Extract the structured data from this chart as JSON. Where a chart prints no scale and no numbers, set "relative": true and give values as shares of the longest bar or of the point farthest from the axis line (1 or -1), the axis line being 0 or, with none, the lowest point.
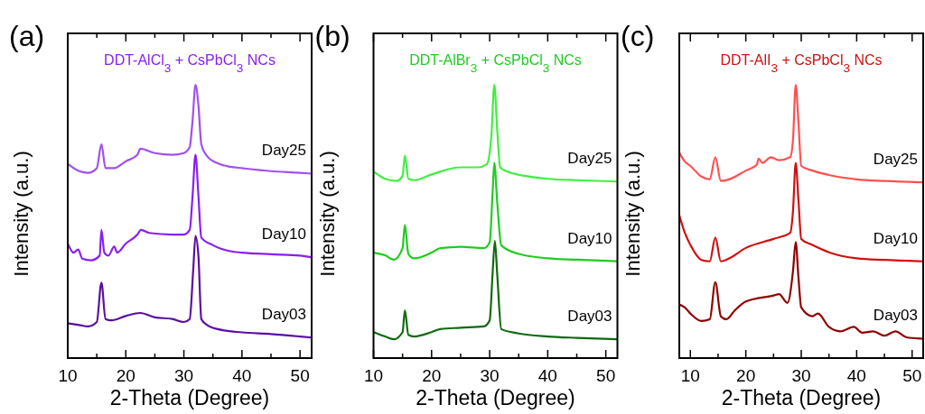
{
  "chart_data": [
    {
      "type": "line",
      "title": "DDT-AlCl$_{3}$ + CsPbCl$_{3}$ NCs",
      "xlabel": "2-Theta (Degree)",
      "ylabel": "Intensity (a.u.)",
      "annotations": [
        "(a)"
      ],
      "relative": true,
      "tick_labels": "x",
      "xlim": [
        10,
        52
      ],
      "xticks": [
        10,
        {
          "value": 15,
          "label": null
        },
        20,
        {
          "value": 25,
          "label": null
        },
        30,
        {
          "value": 35,
          "label": null
        },
        40,
        {
          "value": 45,
          "label": null
        },
        50
      ],
      "series": [
        {
          "name": "Day25",
          "color": "#a050f0",
          "x": [
            10,
            12,
            13.5,
            15,
            15.8,
            16.5,
            18,
            20,
            22,
            22.5,
            25,
            28,
            30,
            31,
            31.5,
            32,
            32.5,
            33,
            34,
            36,
            38,
            40,
            45,
            50,
            52
          ],
          "values": [
            0.711,
            0.684,
            0.678,
            0.695,
            0.783,
            0.695,
            0.695,
            0.72,
            0.744,
            0.766,
            0.75,
            0.744,
            0.75,
            0.772,
            0.871,
            1.0,
            0.926,
            0.783,
            0.739,
            0.711,
            0.7,
            0.695,
            0.684,
            0.678,
            0.675
          ]
        },
        {
          "name": "Day10",
          "color": "#8a1ff0",
          "x": [
            10,
            11,
            11.8,
            12.5,
            14,
            15.5,
            15.8,
            16.3,
            17,
            18,
            18.5,
            20,
            22,
            22.6,
            24,
            28,
            30,
            31,
            31.5,
            32,
            32.5,
            33,
            35,
            38,
            40,
            45,
            50,
            52
          ],
          "values": [
            0.419,
            0.386,
            0.397,
            0.364,
            0.358,
            0.375,
            0.469,
            0.386,
            0.375,
            0.408,
            0.386,
            0.419,
            0.452,
            0.469,
            0.458,
            0.452,
            0.452,
            0.469,
            0.595,
            0.744,
            0.595,
            0.441,
            0.413,
            0.391,
            0.386,
            0.38,
            0.375,
            0.369
          ]
        },
        {
          "name": "Day03",
          "color": "#5a0fa0",
          "x": [
            10,
            12,
            13.5,
            15,
            15.8,
            16.5,
            17.5,
            20,
            22.5,
            25,
            28,
            30,
            31,
            31.6,
            32,
            32.5,
            33,
            34,
            36,
            40,
            45,
            50,
            52
          ],
          "values": [
            0.127,
            0.121,
            0.116,
            0.132,
            0.276,
            0.143,
            0.138,
            0.154,
            0.165,
            0.149,
            0.143,
            0.132,
            0.143,
            0.32,
            0.447,
            0.375,
            0.143,
            0.121,
            0.105,
            0.094,
            0.088,
            0.079,
            0.075
          ]
        }
      ]
    },
    {
      "type": "line",
      "title": "DDT-AlBr$_{3}$ + CsPbCl$_{3}$ NCs",
      "xlabel": "2-Theta (Degree)",
      "ylabel": "Intensity (a.u.)",
      "annotations": [
        "(b)"
      ],
      "relative": true,
      "tick_labels": "x",
      "xlim": [
        10,
        52
      ],
      "xticks": [
        10,
        {
          "value": 15,
          "label": null
        },
        20,
        {
          "value": 25,
          "label": null
        },
        30,
        {
          "value": 35,
          "label": null
        },
        40,
        {
          "value": 45,
          "label": null
        },
        50
      ],
      "series": [
        {
          "name": "Day25",
          "color": "#40f040",
          "x": [
            10,
            12,
            14,
            15,
            15.4,
            16,
            17,
            20,
            25,
            28,
            29.5,
            30.3,
            30.8,
            31.3,
            31.8,
            33,
            36,
            40,
            45,
            52
          ],
          "values": [
            0.683,
            0.656,
            0.648,
            0.667,
            0.741,
            0.656,
            0.651,
            0.672,
            0.698,
            0.698,
            0.709,
            0.815,
            1.0,
            0.836,
            0.698,
            0.683,
            0.667,
            0.656,
            0.651,
            0.646
          ]
        },
        {
          "name": "Day10",
          "color": "#20cc20",
          "x": [
            10,
            12,
            13.5,
            15,
            15.4,
            16,
            17,
            20,
            21.5,
            25,
            29,
            30,
            30.5,
            30.8,
            31.3,
            32,
            35,
            40,
            45,
            52
          ],
          "values": [
            0.386,
            0.376,
            0.36,
            0.402,
            0.487,
            0.381,
            0.365,
            0.386,
            0.402,
            0.407,
            0.402,
            0.423,
            0.603,
            0.714,
            0.571,
            0.413,
            0.381,
            0.365,
            0.36,
            0.354
          ]
        },
        {
          "name": "Day03",
          "color": "#0f6a0f",
          "x": [
            10,
            12,
            13.5,
            15,
            15.4,
            16,
            17,
            20,
            21.5,
            25,
            29,
            30,
            30.5,
            30.9,
            31.3,
            32,
            35,
            40,
            45,
            52
          ],
          "values": [
            0.095,
            0.079,
            0.069,
            0.095,
            0.175,
            0.085,
            0.079,
            0.095,
            0.106,
            0.111,
            0.116,
            0.138,
            0.307,
            0.429,
            0.307,
            0.106,
            0.09,
            0.079,
            0.074,
            0.069
          ]
        }
      ]
    },
    {
      "type": "line",
      "title": "DDT-AlI$_{3}$ + CsPbCl$_{3}$ NCs",
      "xlabel": "2-Theta (Degree)",
      "ylabel": "Intensity (a.u.)",
      "annotations": [
        "(c)"
      ],
      "relative": true,
      "tick_labels": "x",
      "xlim": [
        8,
        52
      ],
      "xticks": [
        10,
        {
          "value": 15,
          "label": null
        },
        20,
        {
          "value": 25,
          "label": null
        },
        30,
        {
          "value": 35,
          "label": null
        },
        40,
        {
          "value": 45,
          "label": null
        },
        50
      ],
      "series": [
        {
          "name": "Day25",
          "color": "#ff5050",
          "x": [
            8,
            9,
            10,
            12,
            13.5,
            14.5,
            15.5,
            17,
            20,
            22,
            22.3,
            23,
            24.5,
            26,
            28,
            28.5,
            29,
            29.5,
            30,
            32,
            35,
            40,
            45,
            52
          ],
          "values": [
            0.752,
            0.719,
            0.703,
            0.664,
            0.654,
            0.735,
            0.648,
            0.654,
            0.686,
            0.708,
            0.73,
            0.714,
            0.735,
            0.724,
            0.735,
            0.795,
            1.0,
            0.861,
            0.703,
            0.686,
            0.67,
            0.654,
            0.648,
            0.643
          ]
        },
        {
          "name": "Day10",
          "color": "#d01010",
          "x": [
            8,
            9,
            10,
            12,
            13.5,
            14.5,
            15.5,
            17,
            20,
            25,
            28,
            28.5,
            29,
            29.5,
            30,
            32,
            35,
            40,
            45,
            52
          ],
          "values": [
            0.523,
            0.458,
            0.414,
            0.359,
            0.354,
            0.441,
            0.354,
            0.365,
            0.403,
            0.436,
            0.458,
            0.534,
            0.714,
            0.577,
            0.436,
            0.414,
            0.387,
            0.365,
            0.359,
            0.354
          ]
        },
        {
          "name": "Day03",
          "color": "#900000",
          "x": [
            8,
            9,
            10,
            12,
            13.5,
            14.5,
            15.5,
            16.5,
            18,
            20,
            25,
            26,
            27.5,
            28.5,
            29,
            29.5,
            30,
            32,
            33,
            35,
            37,
            39.5,
            41,
            43,
            45,
            47,
            49,
            52
          ],
          "values": [
            0.196,
            0.185,
            0.163,
            0.136,
            0.142,
            0.278,
            0.153,
            0.142,
            0.174,
            0.207,
            0.229,
            0.234,
            0.202,
            0.316,
            0.425,
            0.294,
            0.185,
            0.153,
            0.163,
            0.114,
            0.098,
            0.114,
            0.093,
            0.098,
            0.082,
            0.098,
            0.076,
            0.071
          ]
        }
      ]
    }
  ]
}
